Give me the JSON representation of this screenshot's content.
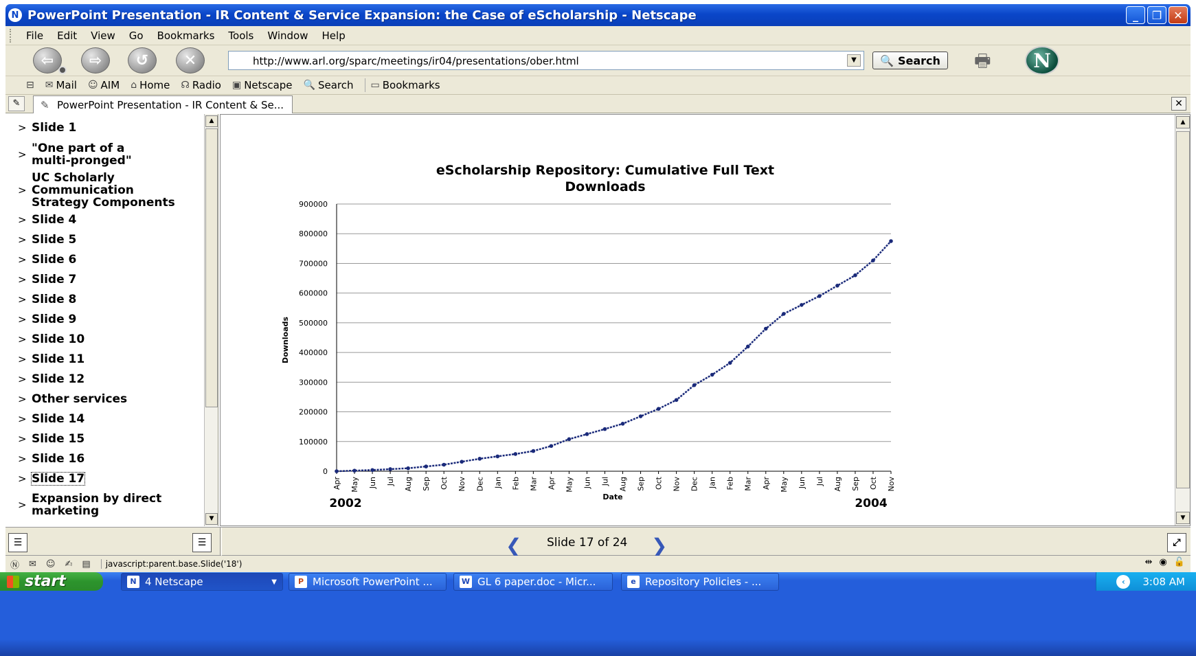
{
  "window": {
    "title": "PowerPoint Presentation - IR Content & Service Expansion: the Case of eScholarship - Netscape"
  },
  "menu": [
    "File",
    "Edit",
    "View",
    "Go",
    "Bookmarks",
    "Tools",
    "Window",
    "Help"
  ],
  "navbar": {
    "url": "http://www.arl.org/sparc/meetings/ir04/presentations/ober.html",
    "search_label": "Search"
  },
  "personal_toolbar": [
    "Mail",
    "AIM",
    "Home",
    "Radio",
    "Netscape",
    "Search",
    "Bookmarks"
  ],
  "tab": {
    "label": "PowerPoint Presentation - IR Content & Se..."
  },
  "outline": [
    "Slide 1",
    "\"One part of a multi-pronged\"",
    "UC Scholarly Communication Strategy Components",
    "Slide 4",
    "Slide 5",
    "Slide 6",
    "Slide 7",
    "Slide 8",
    "Slide 9",
    "Slide 10",
    "Slide 11",
    "Slide 12",
    "Other services",
    "Slide 14",
    "Slide 15",
    "Slide 16",
    "Slide 17",
    "Expansion by direct marketing"
  ],
  "outline_current": "Slide 17",
  "outline_bullet": ">",
  "slide_nav": {
    "counter": "Slide 17 of 24"
  },
  "status": {
    "text": "javascript:parent.base.Slide('18')"
  },
  "taskbar": {
    "start": "start",
    "tasks": [
      "4 Netscape",
      "Microsoft PowerPoint ...",
      "GL 6 paper.doc - Micr...",
      "Repository Policies - ..."
    ],
    "clock": "3:08 AM"
  },
  "colors": {
    "series": "#1a2a7a",
    "titlebar": "#0a46c9",
    "taskbar": "#245edb"
  },
  "chart_data": {
    "type": "line",
    "title": "eScholarship Repository: Cumulative Full Text Downloads",
    "xlabel": "Date",
    "ylabel": "Downloads",
    "ylim": [
      0,
      900000
    ],
    "yticks": [
      0,
      100000,
      200000,
      300000,
      400000,
      500000,
      600000,
      700000,
      800000,
      900000
    ],
    "grid": true,
    "year_labels": [
      "2002",
      "2004"
    ],
    "categories": [
      "Apr",
      "May",
      "Jun",
      "Jul",
      "Aug",
      "Sep",
      "Oct",
      "Nov",
      "Dec",
      "Jan",
      "Feb",
      "Mar",
      "Apr",
      "May",
      "Jun",
      "Jul",
      "Aug",
      "Sep",
      "Oct",
      "Nov",
      "Dec",
      "Jan",
      "Feb",
      "Mar",
      "Apr",
      "May",
      "Jun",
      "Jul",
      "Aug",
      "Sep",
      "Oct",
      "Nov"
    ],
    "series": [
      {
        "name": "",
        "values": [
          0,
          2000,
          4000,
          7000,
          10000,
          16000,
          22000,
          32000,
          42000,
          50000,
          58000,
          68000,
          85000,
          108000,
          125000,
          142000,
          160000,
          185000,
          210000,
          240000,
          290000,
          325000,
          365000,
          420000,
          480000,
          530000,
          560000,
          590000,
          625000,
          660000,
          710000,
          775000
        ]
      }
    ]
  }
}
